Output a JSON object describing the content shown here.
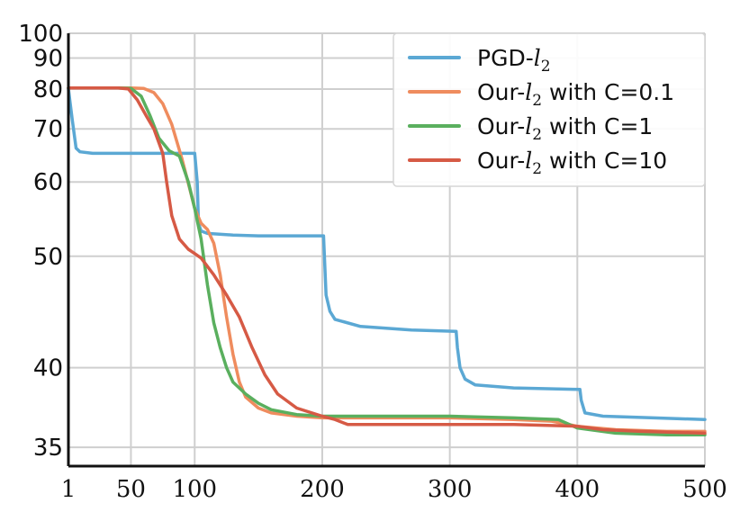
{
  "chart_data": {
    "type": "line",
    "title": "",
    "xlabel": "",
    "ylabel": "",
    "xlim": [
      1,
      500
    ],
    "ylim": [
      34,
      100
    ],
    "y_scale": "reciprocal",
    "grid": true,
    "legend_position": "top-right",
    "x_ticks": [
      1,
      50,
      100,
      200,
      300,
      400,
      500
    ],
    "x_tick_labels": [
      "1",
      "50",
      "100",
      "200",
      "300",
      "400",
      "500"
    ],
    "y_ticks": [
      35,
      40,
      50,
      60,
      70,
      80,
      90,
      100
    ],
    "y_tick_labels": [
      "35",
      "40",
      "50",
      "60",
      "70",
      "80",
      "90",
      "100"
    ],
    "series": [
      {
        "name": "PGD-l2",
        "name_prefix": "PGD-",
        "name_var": "l",
        "name_sub": "2",
        "name_suffix": "",
        "color": "#5ba8d4",
        "points": [
          [
            1,
            80
          ],
          [
            4,
            72
          ],
          [
            7,
            66
          ],
          [
            10,
            65.3
          ],
          [
            20,
            65.0
          ],
          [
            50,
            65.0
          ],
          [
            100,
            65.0
          ],
          [
            102,
            60
          ],
          [
            103,
            54
          ],
          [
            105,
            53
          ],
          [
            110,
            52.7
          ],
          [
            130,
            52.5
          ],
          [
            150,
            52.4
          ],
          [
            201,
            52.4
          ],
          [
            202,
            49
          ],
          [
            203,
            46
          ],
          [
            206,
            44.5
          ],
          [
            210,
            43.8
          ],
          [
            230,
            43.2
          ],
          [
            270,
            42.9
          ],
          [
            305,
            42.8
          ],
          [
            306,
            41.5
          ],
          [
            308,
            40
          ],
          [
            312,
            39.2
          ],
          [
            320,
            38.8
          ],
          [
            350,
            38.6
          ],
          [
            402,
            38.5
          ],
          [
            403,
            37.8
          ],
          [
            406,
            37
          ],
          [
            420,
            36.8
          ],
          [
            460,
            36.7
          ],
          [
            500,
            36.6
          ]
        ]
      },
      {
        "name": "Our-l2 with C=0.1",
        "name_prefix": "Our-",
        "name_var": "l",
        "name_sub": "2",
        "name_suffix": " with C=0.1",
        "color": "#ef8c5e",
        "points": [
          [
            1,
            80.3
          ],
          [
            50,
            80.3
          ],
          [
            60,
            80.2
          ],
          [
            68,
            79
          ],
          [
            75,
            76
          ],
          [
            82,
            71
          ],
          [
            90,
            64
          ],
          [
            96,
            59
          ],
          [
            100,
            56
          ],
          [
            105,
            54
          ],
          [
            110,
            53.2
          ],
          [
            115,
            51.5
          ],
          [
            120,
            48
          ],
          [
            125,
            44
          ],
          [
            130,
            41
          ],
          [
            135,
            39
          ],
          [
            140,
            38
          ],
          [
            150,
            37.3
          ],
          [
            160,
            37
          ],
          [
            180,
            36.8
          ],
          [
            200,
            36.7
          ],
          [
            250,
            36.7
          ],
          [
            300,
            36.7
          ],
          [
            350,
            36.6
          ],
          [
            380,
            36.5
          ],
          [
            400,
            36.2
          ],
          [
            430,
            36.0
          ],
          [
            470,
            35.9
          ],
          [
            500,
            35.9
          ]
        ]
      },
      {
        "name": "Our-l2 with C=1",
        "name_prefix": "Our-",
        "name_var": "l",
        "name_sub": "2",
        "name_suffix": " with C=1",
        "color": "#5aaf5e",
        "points": [
          [
            1,
            80.3
          ],
          [
            40,
            80.3
          ],
          [
            50,
            80.2
          ],
          [
            58,
            78
          ],
          [
            65,
            73
          ],
          [
            72,
            68
          ],
          [
            80,
            65.5
          ],
          [
            88,
            64.5
          ],
          [
            95,
            60
          ],
          [
            100,
            56
          ],
          [
            105,
            52
          ],
          [
            110,
            47
          ],
          [
            115,
            43.5
          ],
          [
            120,
            41.5
          ],
          [
            125,
            40
          ],
          [
            130,
            39
          ],
          [
            140,
            38.2
          ],
          [
            150,
            37.6
          ],
          [
            160,
            37.2
          ],
          [
            180,
            36.9
          ],
          [
            200,
            36.8
          ],
          [
            250,
            36.8
          ],
          [
            300,
            36.8
          ],
          [
            350,
            36.7
          ],
          [
            385,
            36.6
          ],
          [
            400,
            36.1
          ],
          [
            430,
            35.8
          ],
          [
            470,
            35.7
          ],
          [
            500,
            35.7
          ]
        ]
      },
      {
        "name": "Our-l2 with C=10",
        "name_prefix": "Our-",
        "name_var": "l",
        "name_sub": "2",
        "name_suffix": " with C=10",
        "color": "#d65a45",
        "points": [
          [
            1,
            80.3
          ],
          [
            40,
            80.3
          ],
          [
            48,
            80.0
          ],
          [
            55,
            77
          ],
          [
            62,
            73
          ],
          [
            68,
            70
          ],
          [
            75,
            65
          ],
          [
            78,
            60
          ],
          [
            82,
            55
          ],
          [
            88,
            52
          ],
          [
            95,
            50.8
          ],
          [
            100,
            50.3
          ],
          [
            105,
            49.8
          ],
          [
            115,
            48
          ],
          [
            125,
            46
          ],
          [
            135,
            44
          ],
          [
            145,
            41.5
          ],
          [
            155,
            39.5
          ],
          [
            165,
            38.2
          ],
          [
            180,
            37.3
          ],
          [
            200,
            36.8
          ],
          [
            210,
            36.6
          ],
          [
            220,
            36.3
          ],
          [
            240,
            36.3
          ],
          [
            300,
            36.3
          ],
          [
            350,
            36.3
          ],
          [
            400,
            36.2
          ],
          [
            420,
            36.0
          ],
          [
            450,
            35.9
          ],
          [
            500,
            35.8
          ]
        ]
      }
    ]
  }
}
